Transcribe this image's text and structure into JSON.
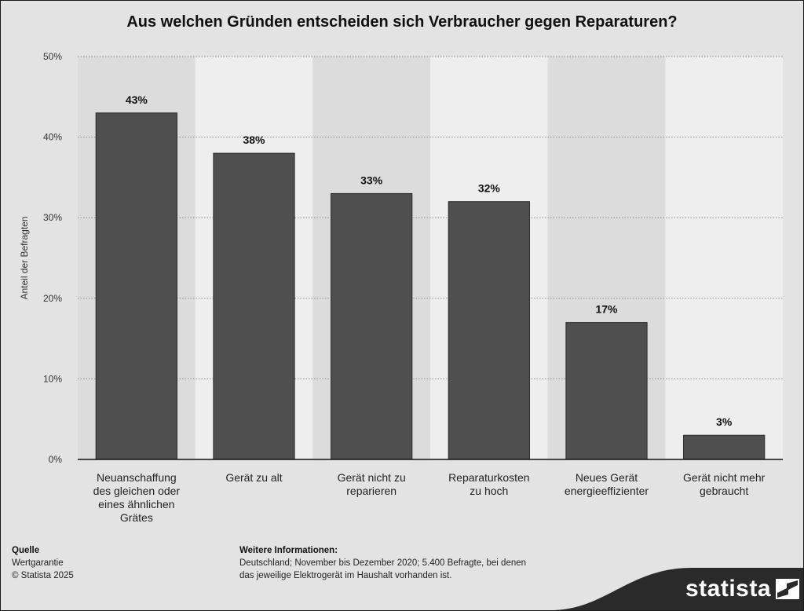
{
  "chart_data": {
    "type": "bar",
    "title": "Aus welchen Gründen entscheiden sich Verbraucher gegen Reparaturen?",
    "ylabel": "Anteil der Befragten",
    "xlabel": "",
    "ylim": [
      0,
      50
    ],
    "yticks": [
      0,
      10,
      20,
      30,
      40,
      50
    ],
    "ytick_labels": [
      "0%",
      "10%",
      "20%",
      "30%",
      "40%",
      "50%"
    ],
    "grid": true,
    "categories": [
      [
        "Neuanschaffung",
        "des gleichen oder",
        "eines ähnlichen",
        "Grätes"
      ],
      [
        "Gerät zu alt"
      ],
      [
        "Gerät nicht zu",
        "reparieren"
      ],
      [
        "Reparaturkosten",
        "zu hoch"
      ],
      [
        "Neues Gerät",
        "energieeffizienter"
      ],
      [
        "Gerät nicht mehr",
        "gebraucht"
      ]
    ],
    "values": [
      43,
      38,
      33,
      32,
      17,
      3
    ],
    "data_labels": [
      "43%",
      "38%",
      "33%",
      "32%",
      "17%",
      "3%"
    ],
    "bar_color": "#4f4f4f",
    "band_colors": [
      "#dcdcdc",
      "#eeeeee"
    ]
  },
  "footer": {
    "source_heading": "Quelle",
    "source_lines": [
      "Wertgarantie",
      "© Statista 2025"
    ],
    "info_heading": "Weitere Informationen:",
    "info_lines": [
      "Deutschland; November bis Dezember 2020; 5.400 Befragte, bei denen",
      "das jeweilige Elektrogerät im Haushalt vorhanden ist."
    ]
  },
  "brand": {
    "logo_text": "statista",
    "logo_icon": "statista-logo-icon"
  }
}
